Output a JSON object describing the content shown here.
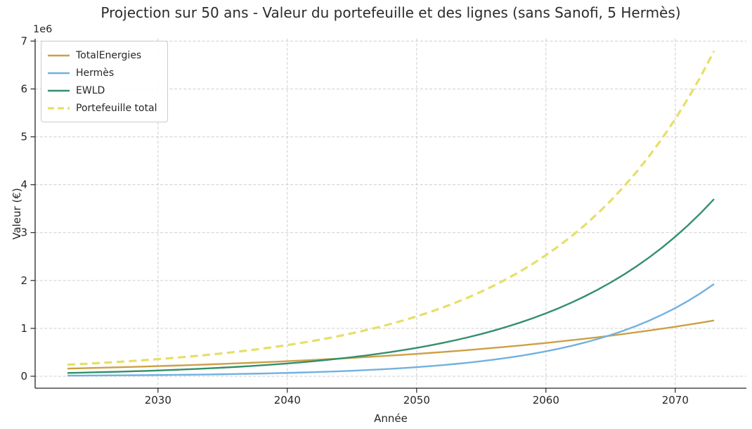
{
  "figure": {
    "title": "Projection sur 50 ans - Valeur du portefeuille et des lignes (sans Sanofi, 5 Hermès)"
  },
  "chart_data": {
    "type": "line",
    "title": "Projection sur 50 ans - Valeur du portefeuille et des lignes (sans Sanofi, 5 Hermès)",
    "xlabel": "Année",
    "ylabel": "Valeur (€)",
    "y_offset_label": "1e6",
    "grid": true,
    "grid_style": "dashed",
    "grid_color": "#c9c9c9",
    "spine_color": "#262626",
    "text_color": "#262626",
    "legend_position": "upper left",
    "x_start_year": 2023,
    "x_end_year": 2073,
    "xlim": [
      2020.5,
      2075.5
    ],
    "ylim": [
      -250000,
      7050000
    ],
    "x_ticks": [
      2030,
      2040,
      2050,
      2060,
      2070
    ],
    "y_ticks": [
      0,
      1000000,
      2000000,
      3000000,
      4000000,
      5000000,
      6000000,
      7000000
    ],
    "y_tick_labels": [
      "0",
      "1",
      "2",
      "3",
      "4",
      "5",
      "6",
      "7"
    ],
    "series": [
      {
        "name": "TotalEnergies",
        "color": "#cda046",
        "style": "solid",
        "line_width": 2.4,
        "start_value": 160000,
        "annual_growth_rate": 0.0405,
        "values_by_year": {
          "2023": 160000,
          "2030": 211300,
          "2040": 314400,
          "2050": 467700,
          "2060": 695800,
          "2070": 1035100,
          "2073": 1164600
        }
      },
      {
        "name": "Hermès",
        "color": "#72b1e0",
        "style": "solid",
        "line_width": 2.4,
        "start_value": 12500,
        "annual_growth_rate": 0.106,
        "values_by_year": {
          "2023": 12500,
          "2030": 25300,
          "2040": 69300,
          "2050": 189900,
          "2060": 520100,
          "2070": 1424600,
          "2073": 1925000
        }
      },
      {
        "name": "EWLD",
        "color": "#338f6b",
        "style": "solid",
        "line_width": 2.4,
        "start_value": 69000,
        "annual_growth_rate": 0.0829,
        "values_by_year": {
          "2023": 69000,
          "2030": 120500,
          "2040": 267300,
          "2050": 592800,
          "2060": 1314700,
          "2070": 2915800,
          "2073": 3701900
        }
      },
      {
        "name": "Portefeuille total",
        "color": "#e6df66",
        "style": "dashed",
        "line_width": 3.2,
        "sum_of_series": true,
        "values_by_year": {
          "2023": 241500,
          "2030": 357100,
          "2040": 651000,
          "2050": 1250400,
          "2060": 2530600,
          "2070": 5375500,
          "2073": 6791500
        }
      }
    ]
  }
}
